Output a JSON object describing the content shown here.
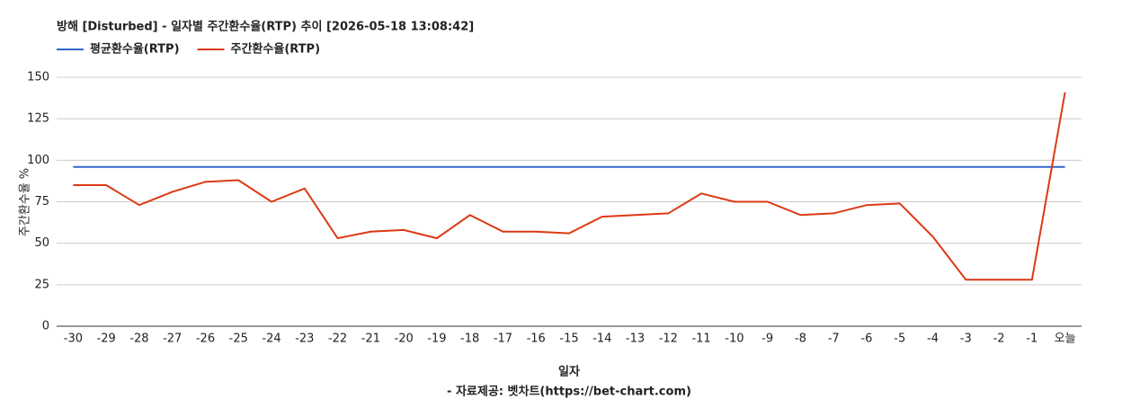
{
  "chart_data": {
    "type": "line",
    "title": "방해 [Disturbed] - 일자별 주간환수율(RTP) 추이 [2026-05-18 13:08:42]",
    "x_label": "일자",
    "y_label": "주간환수율 %",
    "footer": "- 자료제공: 벳차트(https://bet-chart.com)",
    "categories": [
      "-30",
      "-29",
      "-28",
      "-27",
      "-26",
      "-25",
      "-24",
      "-23",
      "-22",
      "-21",
      "-20",
      "-19",
      "-18",
      "-17",
      "-16",
      "-15",
      "-14",
      "-13",
      "-12",
      "-11",
      "-10",
      "-9",
      "-8",
      "-7",
      "-6",
      "-5",
      "-4",
      "-3",
      "-2",
      "-1",
      "오늘"
    ],
    "series": [
      {
        "name": "평균환수율(RTP)",
        "color": "#3366cc",
        "values": [
          96,
          96,
          96,
          96,
          96,
          96,
          96,
          96,
          96,
          96,
          96,
          96,
          96,
          96,
          96,
          96,
          96,
          96,
          96,
          96,
          96,
          96,
          96,
          96,
          96,
          96,
          96,
          96,
          96,
          96,
          96
        ]
      },
      {
        "name": "주간환수율(RTP)",
        "color": "#dc3912",
        "values": [
          85,
          85,
          73,
          81,
          87,
          88,
          75,
          83,
          53,
          57,
          58,
          53,
          67,
          57,
          57,
          56,
          66,
          67,
          68,
          80,
          75,
          75,
          67,
          68,
          73,
          74,
          54,
          28,
          28,
          28,
          141
        ]
      }
    ],
    "ylim": [
      0,
      150
    ],
    "yticks": [
      0,
      25,
      50,
      75,
      100,
      125,
      150
    ],
    "grid": true
  }
}
